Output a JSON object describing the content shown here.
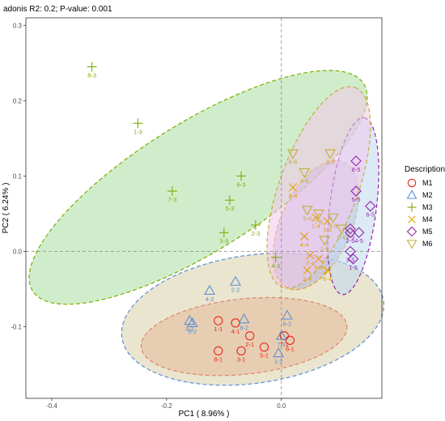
{
  "chart_data": {
    "type": "scatter",
    "title": "adonis R2: 0.2; P-value: 0.001",
    "xlabel": "PC1 ( 8.96% )",
    "ylabel": "PC2 ( 6.24% )",
    "xlim": [
      -0.445,
      0.175
    ],
    "ylim": [
      -0.195,
      0.31
    ],
    "x_ticks": [
      -0.4,
      -0.2,
      0.0
    ],
    "x_tick_labels": [
      "-0.4",
      "-0.2",
      "0.0"
    ],
    "y_ticks": [
      -0.1,
      0.0,
      0.1,
      0.2,
      0.3
    ],
    "y_tick_labels": [
      "-0.1",
      "0.0",
      "0.1",
      "0.2",
      "0.3"
    ],
    "grid": false,
    "zero_lines": true,
    "legend": {
      "title": "Description",
      "position": "right"
    },
    "series": [
      {
        "name": "M1",
        "marker": "circle",
        "color": "#e8271c",
        "ellipse": {
          "cx": -0.065,
          "cy": -0.113,
          "rx": 0.18,
          "ry": 0.05,
          "angle": -6,
          "fill": "#f2a28a"
        },
        "points": [
          {
            "label": "1-1",
            "x": -0.11,
            "y": -0.092
          },
          {
            "label": "4-1",
            "x": -0.08,
            "y": -0.095
          },
          {
            "label": "2-1",
            "x": -0.055,
            "y": -0.112
          },
          {
            "label": "3-1",
            "x": -0.07,
            "y": -0.132
          },
          {
            "label": "5-1",
            "x": -0.03,
            "y": -0.127
          },
          {
            "label": "6-1",
            "x": 0.015,
            "y": -0.118
          },
          {
            "label": "7-1",
            "x": 0.005,
            "y": -0.112
          },
          {
            "label": "8-1",
            "x": -0.11,
            "y": -0.132
          }
        ]
      },
      {
        "name": "M2",
        "marker": "triangle",
        "color": "#5b8fd6",
        "ellipse": {
          "cx": -0.05,
          "cy": -0.09,
          "rx": 0.23,
          "ry": 0.085,
          "angle": -8,
          "fill": "#d9cfa8"
        },
        "points": [
          {
            "label": "1-2",
            "x": -0.005,
            "y": -0.135
          },
          {
            "label": "2-2",
            "x": -0.08,
            "y": -0.04
          },
          {
            "label": "3-2",
            "x": -0.16,
            "y": -0.092
          },
          {
            "label": "4-2",
            "x": -0.125,
            "y": -0.052
          },
          {
            "label": "5-2",
            "x": -0.155,
            "y": -0.095
          },
          {
            "label": "6-2",
            "x": 0.01,
            "y": -0.085
          },
          {
            "label": "7-2",
            "x": 0.0,
            "y": -0.112
          },
          {
            "label": "8-2",
            "x": -0.065,
            "y": -0.09
          }
        ]
      },
      {
        "name": "M3",
        "marker": "plus",
        "color": "#7cae00",
        "ellipse": {
          "cx": -0.145,
          "cy": 0.085,
          "rx": 0.34,
          "ry": 0.085,
          "angle": -32,
          "fill": "#a9dfa0"
        },
        "points": [
          {
            "label": "1-3",
            "x": -0.25,
            "y": 0.17
          },
          {
            "label": "2-3",
            "x": -0.045,
            "y": 0.035
          },
          {
            "label": "3-3",
            "x": -0.1,
            "y": 0.025
          },
          {
            "label": "4-3",
            "x": -0.01,
            "y": -0.008
          },
          {
            "label": "5-3",
            "x": -0.09,
            "y": 0.068
          },
          {
            "label": "6-3",
            "x": -0.07,
            "y": 0.1
          },
          {
            "label": "7-3",
            "x": -0.19,
            "y": 0.08
          },
          {
            "label": "8-3",
            "x": -0.33,
            "y": 0.245
          }
        ]
      },
      {
        "name": "M4",
        "marker": "x",
        "color": "#e69f00",
        "ellipse": {
          "cx": 0.06,
          "cy": 0.035,
          "rx": 0.12,
          "ry": 0.047,
          "angle": -66,
          "fill": "#b2b2d9"
        },
        "points": [
          {
            "label": "1-4",
            "x": 0.06,
            "y": 0.045
          },
          {
            "label": "2-4",
            "x": 0.045,
            "y": -0.025
          },
          {
            "label": "3-4",
            "x": 0.08,
            "y": 0.04
          },
          {
            "label": "4-4",
            "x": 0.04,
            "y": 0.02
          },
          {
            "label": "5-4",
            "x": 0.065,
            "y": -0.01
          },
          {
            "label": "6-4",
            "x": 0.08,
            "y": -0.025
          },
          {
            "label": "7-4",
            "x": 0.05,
            "y": -0.005
          },
          {
            "label": "8-4",
            "x": 0.02,
            "y": 0.085
          }
        ]
      },
      {
        "name": "M5",
        "marker": "diamond",
        "color": "#9526a8",
        "ellipse": {
          "cx": 0.125,
          "cy": 0.06,
          "rx": 0.155,
          "ry": 0.031,
          "angle": -83,
          "fill": "#c0d8ee"
        },
        "points": [
          {
            "label": "1-5",
            "x": 0.125,
            "y": -0.01
          },
          {
            "label": "2-5",
            "x": 0.12,
            "y": 0.025
          },
          {
            "label": "3-5",
            "x": 0.12,
            "y": 0.0
          },
          {
            "label": "4-5",
            "x": 0.135,
            "y": 0.025
          },
          {
            "label": "5-5",
            "x": 0.13,
            "y": 0.08
          },
          {
            "label": "6-5",
            "x": 0.155,
            "y": 0.06
          },
          {
            "label": "7-5",
            "x": 0.12,
            "y": 0.03
          },
          {
            "label": "8-5",
            "x": 0.13,
            "y": 0.12
          }
        ]
      },
      {
        "name": "M6",
        "marker": "triangle-down",
        "color": "#c4ad3a",
        "ellipse": {
          "cx": 0.065,
          "cy": 0.085,
          "rx": 0.185,
          "ry": 0.052,
          "angle": -70,
          "fill": "#f3c7eb"
        },
        "points": [
          {
            "label": "1-6",
            "x": 0.075,
            "y": 0.015
          },
          {
            "label": "2-6",
            "x": 0.085,
            "y": 0.13
          },
          {
            "label": "3-6",
            "x": 0.04,
            "y": 0.105
          },
          {
            "label": "4-6",
            "x": 0.09,
            "y": 0.045
          },
          {
            "label": "5-6",
            "x": 0.045,
            "y": 0.055
          },
          {
            "label": "6-6",
            "x": 0.02,
            "y": 0.13
          },
          {
            "label": "7-6",
            "x": 0.065,
            "y": 0.05
          },
          {
            "label": "8-6",
            "x": 0.105,
            "y": 0.03
          }
        ]
      }
    ]
  }
}
